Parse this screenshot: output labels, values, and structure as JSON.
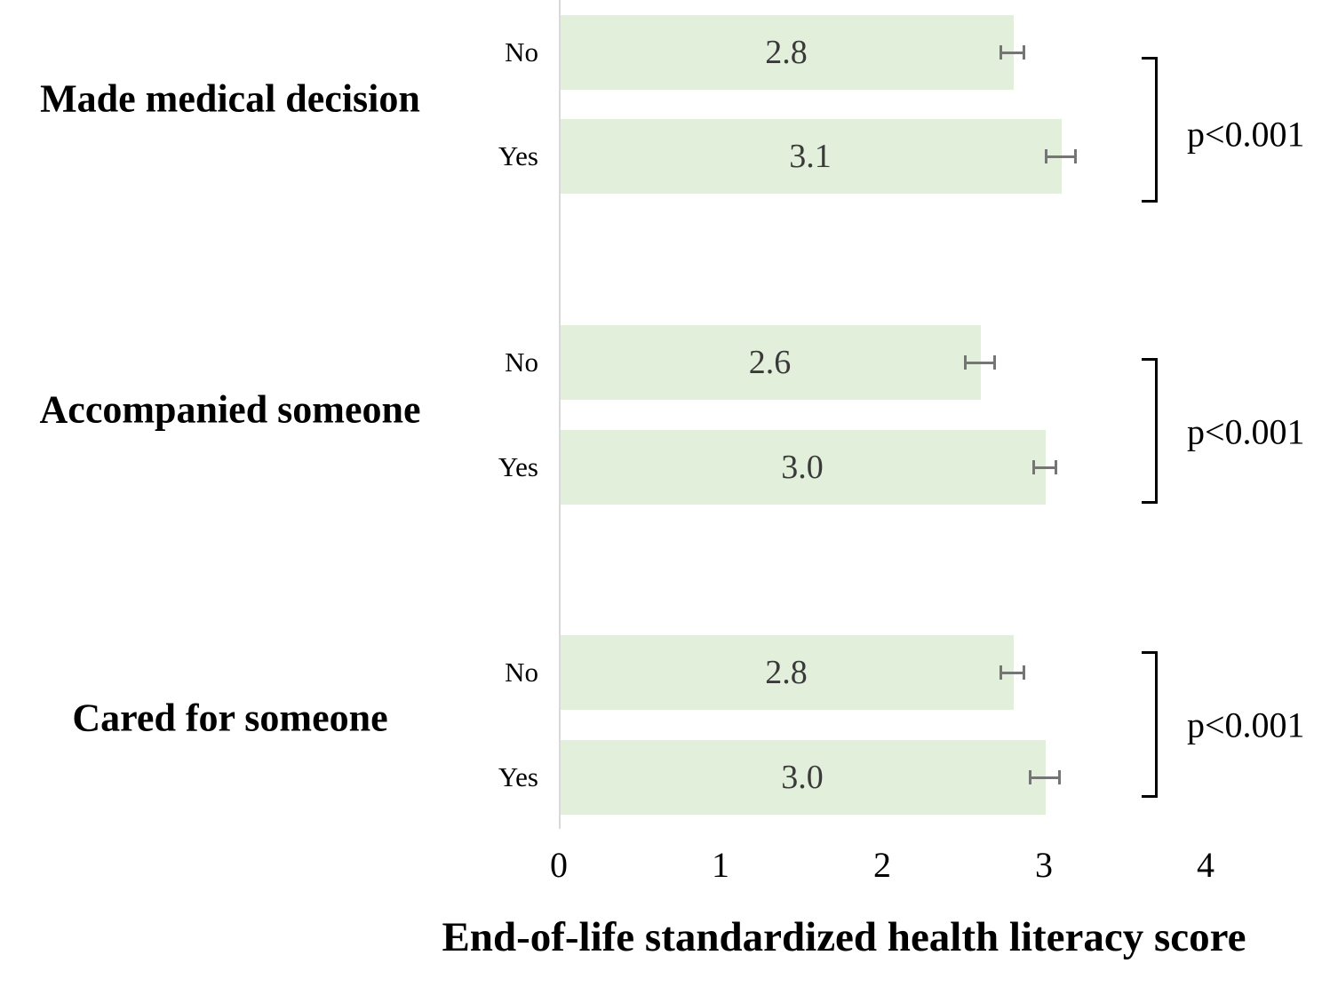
{
  "chart_data": {
    "type": "bar",
    "orientation": "horizontal",
    "xlabel": "End-of-life standardized health literacy score",
    "x_ticks": [
      "0",
      "1",
      "2",
      "3",
      "4"
    ],
    "xlim": [
      0,
      4.7
    ],
    "grid": false,
    "legend": false,
    "groups": [
      {
        "label": "Made medical decision",
        "p_label": "p<0.001",
        "bars": [
          {
            "category": "No",
            "value": 2.8,
            "value_label": "2.8",
            "error": 0.07
          },
          {
            "category": "Yes",
            "value": 3.1,
            "value_label": "3.1",
            "error": 0.09
          }
        ]
      },
      {
        "label": "Accompanied someone",
        "p_label": "p<0.001",
        "bars": [
          {
            "category": "No",
            "value": 2.6,
            "value_label": "2.6",
            "error": 0.09
          },
          {
            "category": "Yes",
            "value": 3.0,
            "value_label": "3.0",
            "error": 0.07
          }
        ]
      },
      {
        "label": "Cared for someone",
        "p_label": "p<0.001",
        "bars": [
          {
            "category": "No",
            "value": 2.8,
            "value_label": "2.8",
            "error": 0.07
          },
          {
            "category": "Yes",
            "value": 3.0,
            "value_label": "3.0",
            "error": 0.09
          }
        ]
      }
    ],
    "colors": {
      "bar_fill": "#e2efda",
      "error_bar": "#757575",
      "value_text": "#3a3a3a",
      "axis_line": "#d9d9d9",
      "text": "#000000",
      "background": "#ffffff"
    }
  }
}
